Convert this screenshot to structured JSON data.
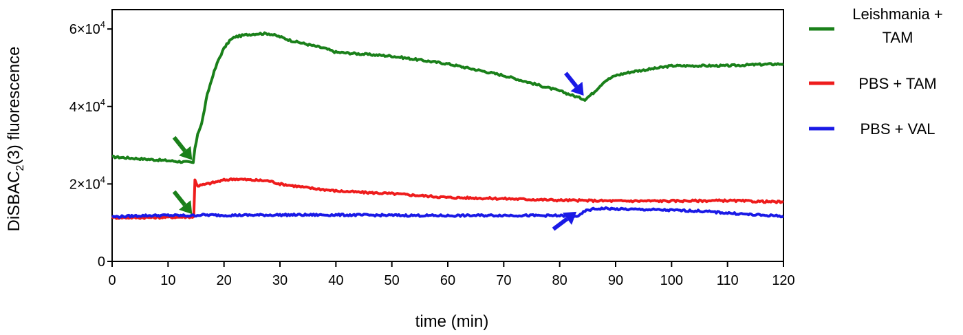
{
  "chart_data": {
    "type": "line",
    "xlabel": "time (min)",
    "ylabel_parts": [
      "DiSBAC",
      "2",
      "(3) fluorescence"
    ],
    "xlim": [
      0,
      120
    ],
    "ylim": [
      0,
      65000
    ],
    "x_ticks": [
      0,
      10,
      20,
      30,
      40,
      50,
      60,
      70,
      80,
      90,
      100,
      110,
      120
    ],
    "y_ticks": [
      {
        "value": 0,
        "mantissa": "0",
        "exp": ""
      },
      {
        "value": 20000,
        "mantissa": "2×10",
        "exp": "4"
      },
      {
        "value": 40000,
        "mantissa": "4×10",
        "exp": "4"
      },
      {
        "value": 60000,
        "mantissa": "6×10",
        "exp": "4"
      }
    ],
    "grid": false,
    "legend_position": "right",
    "series": [
      {
        "name_lines": [
          "Leishmania +",
          "TAM"
        ],
        "color": "#1a801a",
        "points": [
          [
            0,
            27000
          ],
          [
            5,
            26500
          ],
          [
            10,
            26000
          ],
          [
            14.5,
            25500
          ],
          [
            14.8,
            29000
          ],
          [
            15.3,
            33000
          ],
          [
            16,
            35500
          ],
          [
            17,
            43000
          ],
          [
            18,
            48000
          ],
          [
            19,
            52000
          ],
          [
            20,
            55000
          ],
          [
            21,
            57000
          ],
          [
            22,
            58000
          ],
          [
            24,
            58500
          ],
          [
            26,
            58800
          ],
          [
            28,
            58800
          ],
          [
            30,
            58000
          ],
          [
            32,
            57000
          ],
          [
            35,
            56000
          ],
          [
            38,
            55000
          ],
          [
            40,
            54000
          ],
          [
            45,
            53500
          ],
          [
            50,
            53000
          ],
          [
            55,
            52000
          ],
          [
            60,
            51000
          ],
          [
            65,
            49500
          ],
          [
            70,
            48000
          ],
          [
            75,
            46000
          ],
          [
            80,
            44000
          ],
          [
            83,
            42500
          ],
          [
            84.5,
            41800
          ],
          [
            86,
            43500
          ],
          [
            88,
            46500
          ],
          [
            90,
            48000
          ],
          [
            93,
            49000
          ],
          [
            97,
            49800
          ],
          [
            100,
            50500
          ],
          [
            105,
            50500
          ],
          [
            110,
            50500
          ],
          [
            115,
            50800
          ],
          [
            120,
            51000
          ]
        ]
      },
      {
        "name_lines": [
          "PBS + TAM"
        ],
        "color": "#ee1c1c",
        "points": [
          [
            0,
            11300
          ],
          [
            5,
            11300
          ],
          [
            10,
            11400
          ],
          [
            14.6,
            11500
          ],
          [
            14.8,
            21000
          ],
          [
            15.3,
            19500
          ],
          [
            17,
            20000
          ],
          [
            20,
            21000
          ],
          [
            22,
            21300
          ],
          [
            25,
            21000
          ],
          [
            28,
            20800
          ],
          [
            30,
            20000
          ],
          [
            35,
            19000
          ],
          [
            40,
            18200
          ],
          [
            45,
            17800
          ],
          [
            50,
            17500
          ],
          [
            55,
            17000
          ],
          [
            60,
            16500
          ],
          [
            70,
            16200
          ],
          [
            80,
            15800
          ],
          [
            90,
            15600
          ],
          [
            100,
            15600
          ],
          [
            110,
            15700
          ],
          [
            115,
            15500
          ],
          [
            120,
            15300
          ]
        ]
      },
      {
        "name_lines": [
          "PBS + VAL"
        ],
        "color": "#1a1ae6",
        "points": [
          [
            0,
            11500
          ],
          [
            5,
            11800
          ],
          [
            10,
            11900
          ],
          [
            14,
            11800
          ],
          [
            16,
            12000
          ],
          [
            20,
            11900
          ],
          [
            30,
            12000
          ],
          [
            40,
            12000
          ],
          [
            50,
            11900
          ],
          [
            60,
            11800
          ],
          [
            70,
            11900
          ],
          [
            80,
            11800
          ],
          [
            83.5,
            11700
          ],
          [
            84.5,
            13000
          ],
          [
            86,
            13500
          ],
          [
            88,
            13700
          ],
          [
            90,
            13500
          ],
          [
            95,
            13400
          ],
          [
            100,
            13200
          ],
          [
            105,
            13000
          ],
          [
            110,
            12500
          ],
          [
            115,
            12000
          ],
          [
            120,
            11700
          ]
        ]
      }
    ],
    "annotations": [
      {
        "kind": "arrow",
        "color": "#1a801a",
        "tip_x": 14.3,
        "tip_y": 26200,
        "dir": "down-right"
      },
      {
        "kind": "arrow",
        "color": "#1a801a",
        "tip_x": 14.3,
        "tip_y": 12200,
        "dir": "down-right"
      },
      {
        "kind": "arrow",
        "color": "#1a1ae6",
        "tip_x": 84.3,
        "tip_y": 42800,
        "dir": "down-right"
      },
      {
        "kind": "arrow",
        "color": "#1a1ae6",
        "tip_x": 83.0,
        "tip_y": 12800,
        "dir": "up-right"
      }
    ]
  }
}
